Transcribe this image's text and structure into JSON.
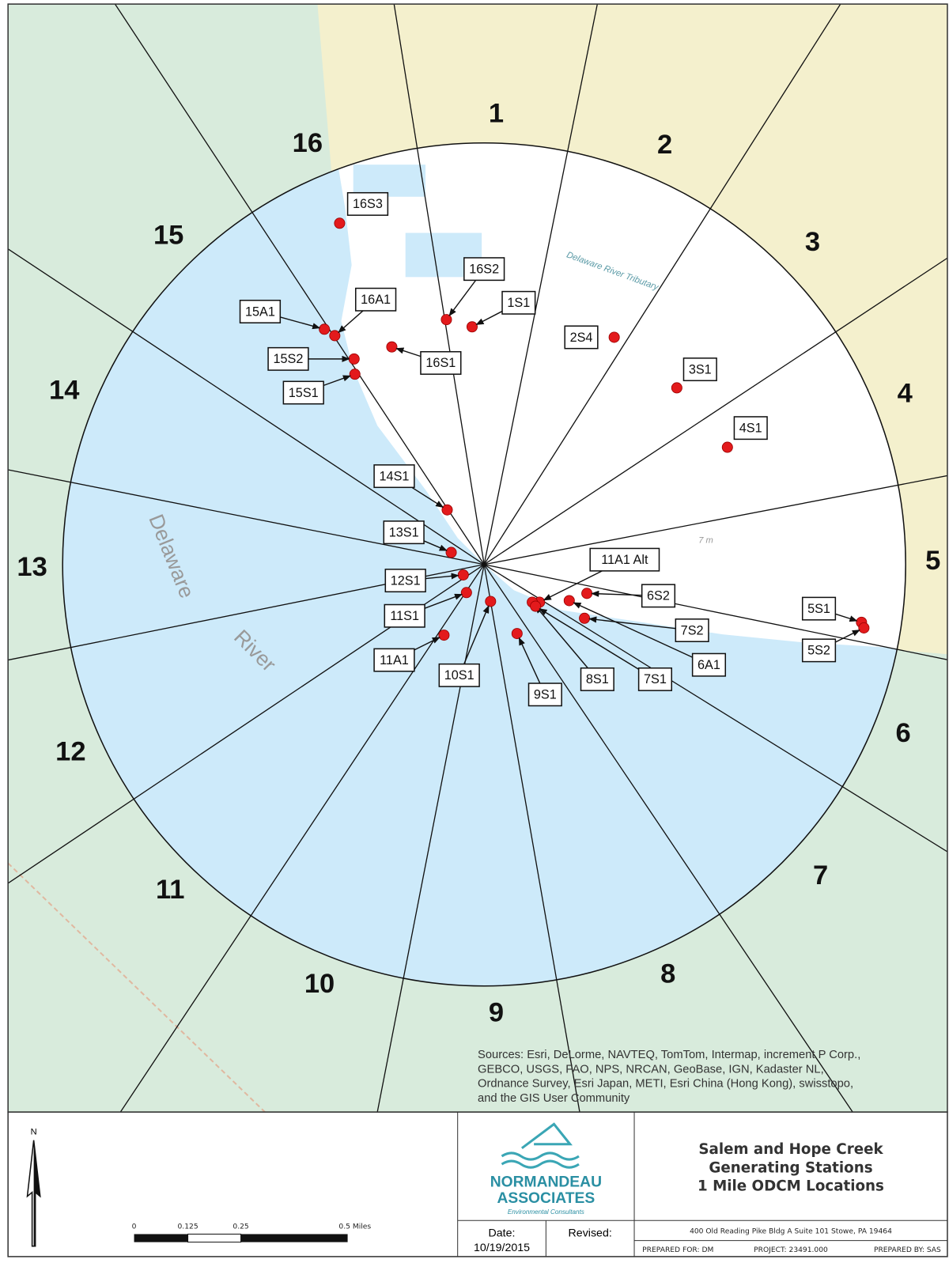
{
  "sectors": [
    "1",
    "2",
    "3",
    "4",
    "5",
    "6",
    "7",
    "8",
    "9",
    "10",
    "11",
    "12",
    "13",
    "14",
    "15",
    "16"
  ],
  "stations": [
    "16S3",
    "16S2",
    "1S1",
    "16A1",
    "15A1",
    "16S1",
    "2S4",
    "15S2",
    "15S1",
    "3S1",
    "4S1",
    "14S1",
    "13S1",
    "11A1 Alt",
    "12S1",
    "6S2",
    "11S1",
    "7S2",
    "5S1",
    "5S2",
    "11A1",
    "10S1",
    "6A1",
    "8S1",
    "7S1",
    "9S1"
  ],
  "map_labels": {
    "river": "Delaware",
    "river2": "River",
    "tributary": "Delaware River Tributary",
    "elevation": "7 m"
  },
  "sources": [
    "Sources: Esri, DeLorme, NAVTEQ, TomTom, Intermap, increment P Corp.,",
    "GEBCO, USGS, FAO, NPS, NRCAN, GeoBase, IGN, Kadaster NL,",
    "Ordnance Survey, Esri Japan, METI, Esri China (Hong Kong), swisstopo,",
    "and the GIS User Community"
  ],
  "north": "N",
  "scale": {
    "ticks": [
      "0",
      "0.125",
      "0.25",
      "0.5 Miles"
    ]
  },
  "logo": {
    "name1": "NORMANDEAU",
    "name2": "ASSOCIATES",
    "tagline": "Environmental Consultants"
  },
  "title": [
    "Salem and Hope Creek",
    "Generating Stations",
    "1 Mile ODCM Locations"
  ],
  "date_label": "Date:",
  "date": "10/19/2015",
  "revised_label": "Revised:",
  "address": "400 Old Reading Pike   Bldg A   Suite 101   Stowe, PA  19464",
  "prepared_for": "PREPARED FOR: DM",
  "project": "PROJECT: 23491.000",
  "prepared_by": "PREPARED BY: SAS"
}
